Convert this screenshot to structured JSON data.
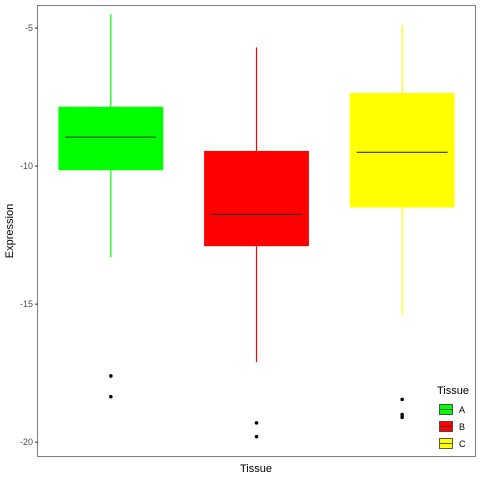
{
  "chart_data": {
    "type": "boxplot",
    "xlabel": "Tissue",
    "ylabel": "Expression",
    "ylim": [
      -20.5,
      -4.2
    ],
    "yticks": [
      -5,
      -10,
      -15,
      -20
    ],
    "grid": false,
    "legend": {
      "title": "Tissue",
      "position": "right-bottom",
      "entries": [
        "A",
        "B",
        "C"
      ]
    },
    "series": [
      {
        "name": "A",
        "color": "#00ff00",
        "whisker_low": -13.3,
        "q1": -10.15,
        "median": -8.95,
        "q3": -7.85,
        "whisker_high": -4.5,
        "outliers": [
          -17.6,
          -18.35
        ]
      },
      {
        "name": "B",
        "color": "#ff0000",
        "whisker_low": -17.1,
        "q1": -12.9,
        "median": -11.75,
        "q3": -9.45,
        "whisker_high": -5.7,
        "outliers": [
          -19.3,
          -19.8
        ]
      },
      {
        "name": "C",
        "color": "#ffff00",
        "whisker_low": -15.4,
        "q1": -11.5,
        "median": -9.5,
        "q3": -7.35,
        "whisker_high": -4.9,
        "outliers": [
          -18.45,
          -19.0,
          -19.1
        ]
      }
    ]
  }
}
